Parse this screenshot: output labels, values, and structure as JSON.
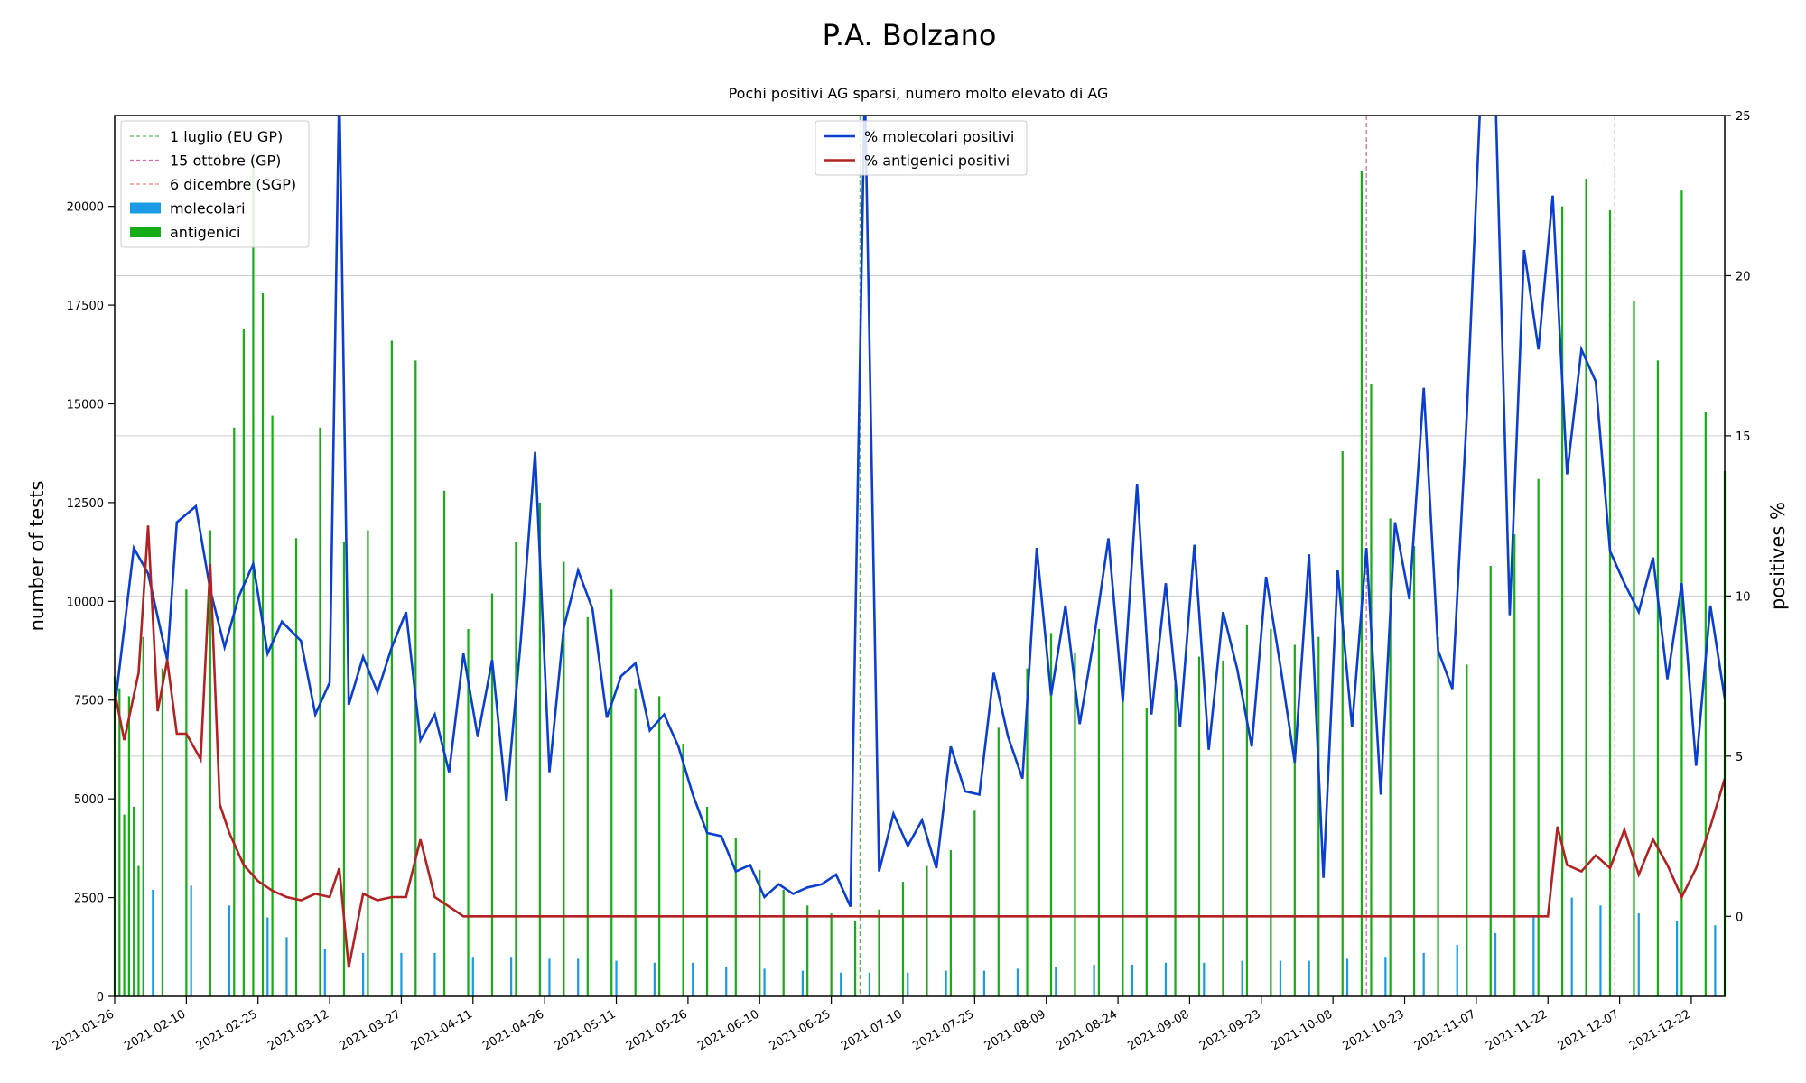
{
  "chart_data": {
    "type": "bar",
    "title": "P.A. Bolzano",
    "subtitle": "Pochi positivi AG sparsi, numero molto elevato di AG",
    "ylabel_left": "number of tests",
    "ylabel_right": "positives %",
    "ylim_left": [
      0,
      22300
    ],
    "ylim_right": [
      -2.5,
      25
    ],
    "yticks_left": [
      "0",
      "2500",
      "5000",
      "7500",
      "10000",
      "12500",
      "15000",
      "17500",
      "20000"
    ],
    "yticks_right": [
      "0",
      "5",
      "10",
      "15",
      "20",
      "25"
    ],
    "xticks": [
      "2021-01-26",
      "2021-02-10",
      "2021-02-25",
      "2021-03-12",
      "2021-03-27",
      "2021-04-11",
      "2021-04-26",
      "2021-05-11",
      "2021-05-26",
      "2021-06-10",
      "2021-06-25",
      "2021-07-10",
      "2021-07-25",
      "2021-08-09",
      "2021-08-24",
      "2021-09-08",
      "2021-09-23",
      "2021-10-08",
      "2021-10-23",
      "2021-11-07",
      "2021-11-22",
      "2021-12-07",
      "2021-12-22"
    ],
    "x_start": "2021-01-26",
    "x_end": "2021-12-29",
    "grid": "horizontal",
    "legend_bars": {
      "placement": "top-left",
      "items": [
        {
          "label": "1 luglio (EU GP)",
          "color": "#5cb85c",
          "style": "dashed"
        },
        {
          "label": "15 ottobre (GP)",
          "color": "#d46ab0",
          "style": "dashed"
        },
        {
          "label": "6 dicembre (SGP)",
          "color": "#f08080",
          "style": "dashed"
        },
        {
          "label": "molecolari",
          "color": "#1a9be6",
          "style": "bar"
        },
        {
          "label": "antigenici",
          "color": "#16ad16",
          "style": "bar"
        }
      ]
    },
    "legend_lines": {
      "placement": "top-center",
      "items": [
        {
          "label": "% molecolari positivi",
          "color": "#0b3fcf"
        },
        {
          "label": "% antigenici positivi",
          "color": "#b22222"
        }
      ]
    },
    "vlines": [
      {
        "date": "2021-07-01",
        "color": "#5cb85c"
      },
      {
        "date": "2021-10-15",
        "color": "#d46ab0"
      },
      {
        "date": "2021-12-06",
        "color": "#f08080"
      }
    ],
    "series": [
      {
        "name": "antigenici",
        "values_by_month": [
          {
            "month": "2021-01",
            "dates": [
              "2021-01-26",
              "2021-01-27",
              "2021-01-28",
              "2021-01-29",
              "2021-01-30",
              "2021-01-31"
            ],
            "values": [
              8100,
              7800,
              4600,
              7600,
              4800,
              3300
            ]
          },
          {
            "month": "2021-02",
            "dates": [
              "2021-02-01",
              "2021-02-05",
              "2021-02-10",
              "2021-02-15",
              "2021-02-20",
              "2021-02-22",
              "2021-02-24",
              "2021-02-26",
              "2021-02-28"
            ],
            "values": [
              9100,
              8300,
              10300,
              11800,
              14400,
              16900,
              21200,
              17800,
              14700
            ]
          },
          {
            "month": "2021-03",
            "dates": [
              "2021-03-05",
              "2021-03-10",
              "2021-03-15",
              "2021-03-20",
              "2021-03-25",
              "2021-03-30"
            ],
            "values": [
              11600,
              14400,
              11500,
              11800,
              16600,
              16100
            ]
          },
          {
            "month": "2021-04",
            "dates": [
              "2021-04-05",
              "2021-04-10",
              "2021-04-15",
              "2021-04-20",
              "2021-04-25",
              "2021-04-30"
            ],
            "values": [
              12800,
              9300,
              10200,
              11500,
              12500,
              11000
            ]
          },
          {
            "month": "2021-05",
            "dates": [
              "2021-05-05",
              "2021-05-10",
              "2021-05-15",
              "2021-05-20",
              "2021-05-25",
              "2021-05-30"
            ],
            "values": [
              9600,
              10300,
              7800,
              7600,
              6400,
              4800
            ]
          },
          {
            "month": "2021-06",
            "dates": [
              "2021-06-05",
              "2021-06-10",
              "2021-06-15",
              "2021-06-20",
              "2021-06-25",
              "2021-06-30"
            ],
            "values": [
              4000,
              3200,
              2700,
              2300,
              2100,
              1900
            ]
          },
          {
            "month": "2021-07",
            "dates": [
              "2021-07-05",
              "2021-07-10",
              "2021-07-15",
              "2021-07-20",
              "2021-07-25",
              "2021-07-30"
            ],
            "values": [
              2200,
              2900,
              3300,
              3700,
              4700,
              6800
            ]
          },
          {
            "month": "2021-08",
            "dates": [
              "2021-08-05",
              "2021-08-10",
              "2021-08-15",
              "2021-08-20",
              "2021-08-25",
              "2021-08-30"
            ],
            "values": [
              8300,
              9200,
              8700,
              9300,
              7600,
              7300
            ]
          },
          {
            "month": "2021-09",
            "dates": [
              "2021-09-05",
              "2021-09-10",
              "2021-09-15",
              "2021-09-20",
              "2021-09-25",
              "2021-09-30"
            ],
            "values": [
              7900,
              8600,
              8500,
              9400,
              9300,
              8900
            ]
          },
          {
            "month": "2021-10",
            "dates": [
              "2021-10-05",
              "2021-10-10",
              "2021-10-14",
              "2021-10-16",
              "2021-10-20",
              "2021-10-25",
              "2021-10-30"
            ],
            "values": [
              9100,
              13800,
              20900,
              15500,
              12100,
              11400,
              9100
            ]
          },
          {
            "month": "2021-11",
            "dates": [
              "2021-11-05",
              "2021-11-10",
              "2021-11-15",
              "2021-11-20",
              "2021-11-25",
              "2021-11-30"
            ],
            "values": [
              8400,
              10900,
              11700,
              13100,
              20000,
              20700
            ]
          },
          {
            "month": "2021-12",
            "dates": [
              "2021-12-05",
              "2021-12-10",
              "2021-12-15",
              "2021-12-20",
              "2021-12-25",
              "2021-12-29"
            ],
            "values": [
              19900,
              17600,
              16100,
              20400,
              14800,
              13300
            ]
          }
        ]
      },
      {
        "name": "molecolari",
        "values_by_month": [
          {
            "month": "2021-01",
            "values": [
              2600,
              2900,
              2500
            ]
          },
          {
            "month": "2021-02",
            "values": [
              2700,
              2800,
              2300,
              2000
            ]
          },
          {
            "month": "2021-03",
            "values": [
              1500,
              1200,
              1100,
              1100
            ]
          },
          {
            "month": "2021-04",
            "values": [
              1100,
              1000,
              1000,
              950
            ]
          },
          {
            "month": "2021-05",
            "values": [
              950,
              900,
              850,
              850
            ]
          },
          {
            "month": "2021-06",
            "values": [
              750,
              700,
              650,
              600
            ]
          },
          {
            "month": "2021-07",
            "values": [
              600,
              600,
              650,
              650
            ]
          },
          {
            "month": "2021-08",
            "values": [
              700,
              750,
              800,
              800
            ]
          },
          {
            "month": "2021-09",
            "values": [
              850,
              850,
              900,
              900
            ]
          },
          {
            "month": "2021-10",
            "values": [
              900,
              950,
              1000,
              1100
            ]
          },
          {
            "month": "2021-11",
            "values": [
              1300,
              1600,
              2000,
              2500
            ]
          },
          {
            "month": "2021-12",
            "values": [
              2300,
              2100,
              1900,
              1800
            ]
          }
        ]
      },
      {
        "name": "% molecolari positivi",
        "dates": [
          "2021-01-26",
          "2021-01-30",
          "2021-02-02",
          "2021-02-06",
          "2021-02-08",
          "2021-02-12",
          "2021-02-15",
          "2021-02-18",
          "2021-02-21",
          "2021-02-24",
          "2021-02-27",
          "2021-03-02",
          "2021-03-06",
          "2021-03-09",
          "2021-03-12",
          "2021-03-14",
          "2021-03-16",
          "2021-03-19",
          "2021-03-22",
          "2021-03-25",
          "2021-03-28",
          "2021-03-31",
          "2021-04-03",
          "2021-04-06",
          "2021-04-09",
          "2021-04-12",
          "2021-04-15",
          "2021-04-18",
          "2021-04-21",
          "2021-04-24",
          "2021-04-27",
          "2021-04-30",
          "2021-05-03",
          "2021-05-06",
          "2021-05-09",
          "2021-05-12",
          "2021-05-15",
          "2021-05-18",
          "2021-05-21",
          "2021-05-24",
          "2021-05-27",
          "2021-05-30",
          "2021-06-02",
          "2021-06-05",
          "2021-06-08",
          "2021-06-11",
          "2021-06-14",
          "2021-06-17",
          "2021-06-20",
          "2021-06-23",
          "2021-06-26",
          "2021-06-29",
          "2021-07-02",
          "2021-07-05",
          "2021-07-08",
          "2021-07-11",
          "2021-07-14",
          "2021-07-17",
          "2021-07-20",
          "2021-07-23",
          "2021-07-26",
          "2021-07-29",
          "2021-08-01",
          "2021-08-04",
          "2021-08-07",
          "2021-08-10",
          "2021-08-13",
          "2021-08-16",
          "2021-08-19",
          "2021-08-22",
          "2021-08-25",
          "2021-08-28",
          "2021-08-31",
          "2021-09-03",
          "2021-09-06",
          "2021-09-09",
          "2021-09-12",
          "2021-09-15",
          "2021-09-18",
          "2021-09-21",
          "2021-09-24",
          "2021-09-27",
          "2021-09-30",
          "2021-10-03",
          "2021-10-06",
          "2021-10-09",
          "2021-10-12",
          "2021-10-15",
          "2021-10-18",
          "2021-10-21",
          "2021-10-24",
          "2021-10-27",
          "2021-10-30",
          "2021-11-02",
          "2021-11-05",
          "2021-11-08",
          "2021-11-11",
          "2021-11-14",
          "2021-11-17",
          "2021-11-20",
          "2021-11-23",
          "2021-11-26",
          "2021-11-29",
          "2021-12-02",
          "2021-12-05",
          "2021-12-08",
          "2021-12-11",
          "2021-12-14",
          "2021-12-17",
          "2021-12-20",
          "2021-12-23",
          "2021-12-26",
          "2021-12-29"
        ],
        "values": [
          6.5,
          11.5,
          10.7,
          8.0,
          12.3,
          12.8,
          10.2,
          8.4,
          10.0,
          11.0,
          8.2,
          9.2,
          8.6,
          6.3,
          7.3,
          26.0,
          6.6,
          8.1,
          7.0,
          8.4,
          9.5,
          5.5,
          6.3,
          4.5,
          8.2,
          5.6,
          8.0,
          3.6,
          8.6,
          14.5,
          4.5,
          9.0,
          10.8,
          9.6,
          6.2,
          7.5,
          7.9,
          5.8,
          6.3,
          5.3,
          3.8,
          2.6,
          2.5,
          1.4,
          1.6,
          0.6,
          1.0,
          0.7,
          0.9,
          1.0,
          1.3,
          0.3,
          26.0,
          1.4,
          3.2,
          2.2,
          3.0,
          1.5,
          5.3,
          3.9,
          3.8,
          7.6,
          5.6,
          4.3,
          11.5,
          6.9,
          9.7,
          6.0,
          8.7,
          11.8,
          6.7,
          13.5,
          6.3,
          10.4,
          5.9,
          11.6,
          5.2,
          9.5,
          7.7,
          5.3,
          10.6,
          7.8,
          4.8,
          11.3,
          1.2,
          10.8,
          5.9,
          11.5,
          3.8,
          12.3,
          9.9,
          16.5,
          8.3,
          7.1,
          15.6,
          26.0,
          25.8,
          9.4,
          20.8,
          17.7,
          22.5,
          13.8,
          17.7,
          16.7,
          11.4,
          10.4,
          9.5,
          11.2,
          7.4,
          10.4,
          4.7,
          9.7,
          6.8
        ]
      },
      {
        "name": "% antigenici positivi",
        "dates": [
          "2021-01-26",
          "2021-01-28",
          "2021-01-31",
          "2021-02-02",
          "2021-02-04",
          "2021-02-06",
          "2021-02-08",
          "2021-02-10",
          "2021-02-13",
          "2021-02-15",
          "2021-02-17",
          "2021-02-19",
          "2021-02-22",
          "2021-02-25",
          "2021-02-28",
          "2021-03-03",
          "2021-03-06",
          "2021-03-09",
          "2021-03-12",
          "2021-03-14",
          "2021-03-16",
          "2021-03-19",
          "2021-03-22",
          "2021-03-25",
          "2021-03-28",
          "2021-03-31",
          "2021-04-03",
          "2021-04-06",
          "2021-04-09",
          "2021-04-12",
          "2021-10-16",
          "2021-11-22",
          "2021-11-24",
          "2021-11-26",
          "2021-11-29",
          "2021-12-02",
          "2021-12-05",
          "2021-12-08",
          "2021-12-11",
          "2021-12-14",
          "2021-12-17",
          "2021-12-20",
          "2021-12-23",
          "2021-12-26",
          "2021-12-29"
        ],
        "values": [
          7.0,
          5.5,
          7.6,
          12.2,
          6.4,
          8.0,
          5.7,
          5.7,
          4.9,
          11.0,
          3.5,
          2.6,
          1.6,
          1.1,
          0.8,
          0.6,
          0.5,
          0.7,
          0.6,
          1.5,
          -1.6,
          0.7,
          0.5,
          0.6,
          0.6,
          2.4,
          0.6,
          0.3,
          0.0,
          0.0,
          0.0,
          0.0,
          2.8,
          1.6,
          1.4,
          1.9,
          1.5,
          2.7,
          1.3,
          2.4,
          1.6,
          0.6,
          1.5,
          2.8,
          4.3
        ]
      }
    ]
  }
}
